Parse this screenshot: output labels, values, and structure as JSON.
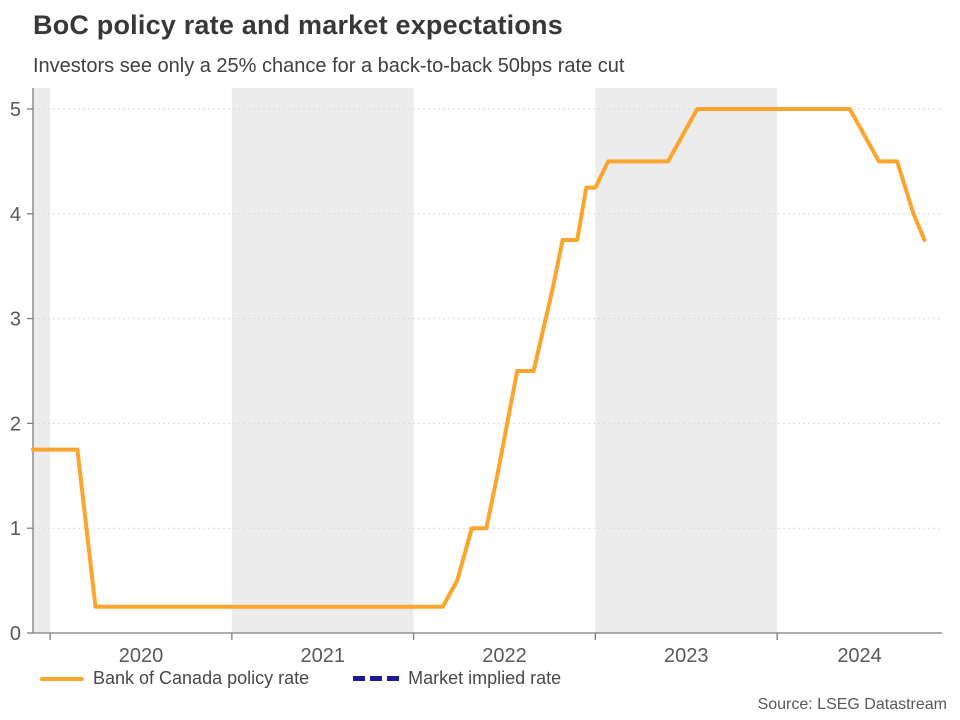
{
  "chart_data": {
    "type": "line",
    "title": "BoC policy rate and market expectations",
    "subtitle": "Investors see only a 25% chance for a back-to-back 50bps rate cut",
    "source": "Source: LSEG Datastream",
    "x_axis": {
      "unit": "year",
      "range": [
        2019.906,
        2024.907
      ],
      "ticks": [
        2020,
        2021,
        2022,
        2023,
        2024
      ],
      "tick_labels": [
        "2020",
        "2021",
        "2022",
        "2023",
        "2024"
      ]
    },
    "y_axis": {
      "range": [
        0,
        5.2
      ],
      "ticks": [
        0,
        1,
        2,
        3,
        4,
        5
      ],
      "tick_labels": [
        "0",
        "1",
        "2",
        "3",
        "4",
        "5"
      ],
      "gridlines_at": [
        1,
        2,
        3,
        4,
        5
      ],
      "grid_style": "dotted"
    },
    "shaded_year_bands": [
      [
        2019.906,
        2020
      ],
      [
        2021,
        2022
      ],
      [
        2023,
        2024
      ]
    ],
    "series": [
      {
        "name": "Bank of Canada policy rate",
        "color": "#FCA52D",
        "style": "solid",
        "points": [
          [
            2019.906,
            1.75
          ],
          [
            2020.15,
            1.75
          ],
          [
            2020.25,
            0.25
          ],
          [
            2022.16,
            0.25
          ],
          [
            2022.24,
            0.5
          ],
          [
            2022.32,
            1.0
          ],
          [
            2022.4,
            1.0
          ],
          [
            2022.46,
            1.5
          ],
          [
            2022.57,
            2.5
          ],
          [
            2022.66,
            2.5
          ],
          [
            2022.76,
            3.25
          ],
          [
            2022.82,
            3.75
          ],
          [
            2022.9,
            3.75
          ],
          [
            2022.95,
            4.25
          ],
          [
            2023.0,
            4.25
          ],
          [
            2023.07,
            4.5
          ],
          [
            2023.4,
            4.5
          ],
          [
            2023.56,
            5.0
          ],
          [
            2024.4,
            5.0
          ],
          [
            2024.56,
            4.5
          ],
          [
            2024.66,
            4.5
          ],
          [
            2024.75,
            4.0
          ],
          [
            2024.81,
            3.75
          ]
        ]
      },
      {
        "name": "Market implied rate",
        "color": "#1B1B94",
        "style": "dashed",
        "points": []
      }
    ],
    "colors": {
      "band": "#ECECEC",
      "grid": "#D9D9D9",
      "axis": "#7E7E7E",
      "tick_label": "#595959"
    }
  }
}
